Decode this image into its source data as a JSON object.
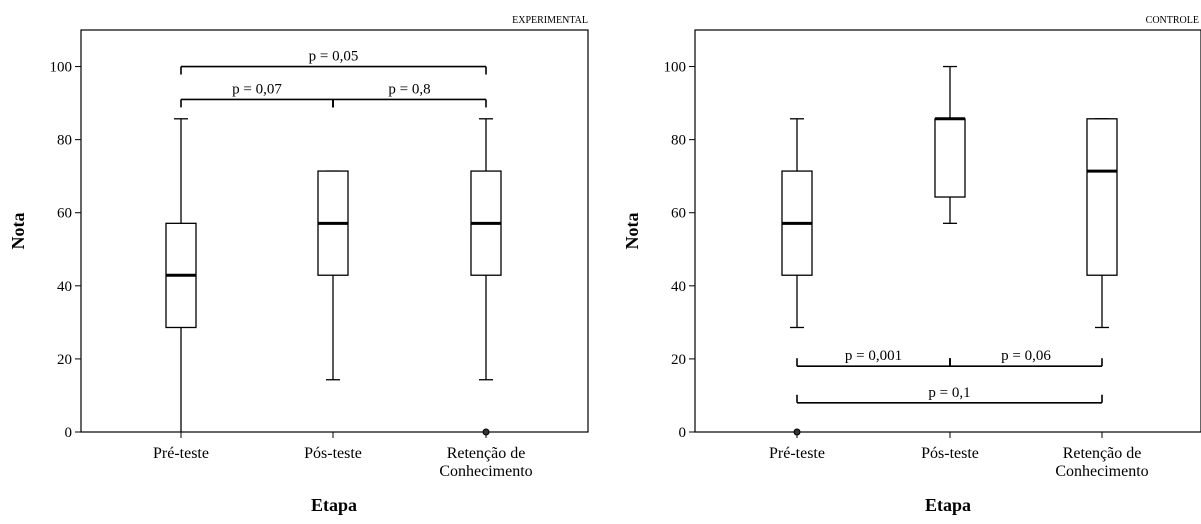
{
  "chart_data": [
    {
      "type": "box",
      "panel_label": "EXPERIMENTAL",
      "xlabel": "Etapa",
      "ylabel": "Nota",
      "ylim": [
        0,
        110
      ],
      "yticks": [
        0,
        20,
        40,
        60,
        80,
        100
      ],
      "categories": [
        "Pré-teste",
        "Pós-teste",
        "Retenção de Conhecimento"
      ],
      "category_labels": [
        [
          "Pré-teste"
        ],
        [
          "Pós-teste"
        ],
        [
          "Retenção de",
          "Conhecimento"
        ]
      ],
      "boxes": [
        {
          "whisker_low": 0,
          "q1": 28.6,
          "median": 42.9,
          "q3": 57.1,
          "whisker_high": 85.7,
          "outliers": []
        },
        {
          "whisker_low": 14.3,
          "q1": 42.9,
          "median": 57.1,
          "q3": 71.4,
          "whisker_high": 71.4,
          "outliers": []
        },
        {
          "whisker_low": 14.3,
          "q1": 42.9,
          "median": 57.1,
          "q3": 71.4,
          "whisker_high": 85.7,
          "outliers": [
            0
          ]
        }
      ],
      "comparisons": [
        {
          "label": "p = 0,05",
          "from": 0,
          "to": 2,
          "level": 100,
          "orientation": "up"
        },
        {
          "label": "p = 0,07",
          "from": 0,
          "to": 1,
          "level": 91,
          "orientation": "up"
        },
        {
          "label": "p = 0,8",
          "from": 1,
          "to": 2,
          "level": 91,
          "orientation": "up"
        }
      ]
    },
    {
      "type": "box",
      "panel_label": "CONTROLE",
      "xlabel": "Etapa",
      "ylabel": "Nota",
      "ylim": [
        0,
        110
      ],
      "yticks": [
        0,
        20,
        40,
        60,
        80,
        100
      ],
      "categories": [
        "Pré-teste",
        "Pós-teste",
        "Retenção de Conhecimento"
      ],
      "category_labels": [
        [
          "Pré-teste"
        ],
        [
          "Pós-teste"
        ],
        [
          "Retenção de",
          "Conhecimento"
        ]
      ],
      "boxes": [
        {
          "whisker_low": 28.6,
          "q1": 42.9,
          "median": 57.1,
          "q3": 71.4,
          "whisker_high": 85.7,
          "outliers": [
            0
          ]
        },
        {
          "whisker_low": 57.1,
          "q1": 64.3,
          "median": 85.7,
          "q3": 85.7,
          "whisker_high": 100,
          "outliers": []
        },
        {
          "whisker_low": 28.6,
          "q1": 42.9,
          "median": 71.4,
          "q3": 85.7,
          "whisker_high": 85.7,
          "outliers": []
        }
      ],
      "comparisons": [
        {
          "label": "p = 0,001",
          "from": 0,
          "to": 1,
          "level": 18,
          "orientation": "down"
        },
        {
          "label": "p = 0,06",
          "from": 1,
          "to": 2,
          "level": 18,
          "orientation": "down"
        },
        {
          "label": "p = 0,1",
          "from": 0,
          "to": 2,
          "level": 8,
          "orientation": "down"
        }
      ]
    }
  ]
}
